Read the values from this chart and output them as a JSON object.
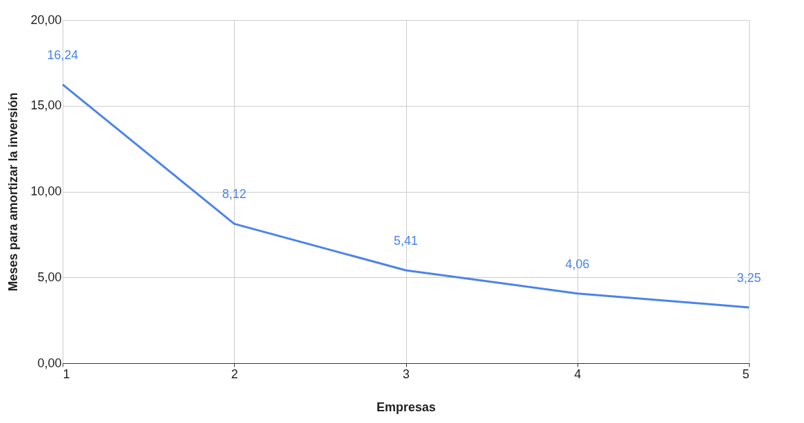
{
  "chart_data": {
    "type": "line",
    "xlabel": "Empresas",
    "ylabel": "Meses para amortizar la inversión",
    "x": [
      1,
      2,
      3,
      4,
      5
    ],
    "series": [
      {
        "color": "#4a83ec",
        "values": [
          16.24,
          8.12,
          5.41,
          4.06,
          3.25
        ],
        "value_labels": [
          "16,24",
          "8,12",
          "5,41",
          "4,06",
          "3,25"
        ]
      }
    ],
    "xlim": [
      1,
      5
    ],
    "xticks": [
      1,
      2,
      3,
      4,
      5
    ],
    "ylim": [
      0,
      20
    ],
    "yticks": [
      {
        "value": 0,
        "label": "0,00"
      },
      {
        "value": 5,
        "label": "5,00"
      },
      {
        "value": 10,
        "label": "10,00"
      },
      {
        "value": 15,
        "label": "15,00"
      },
      {
        "value": 20,
        "label": "20,00"
      }
    ],
    "grid": true,
    "marker": "none",
    "line_style": "solid"
  }
}
